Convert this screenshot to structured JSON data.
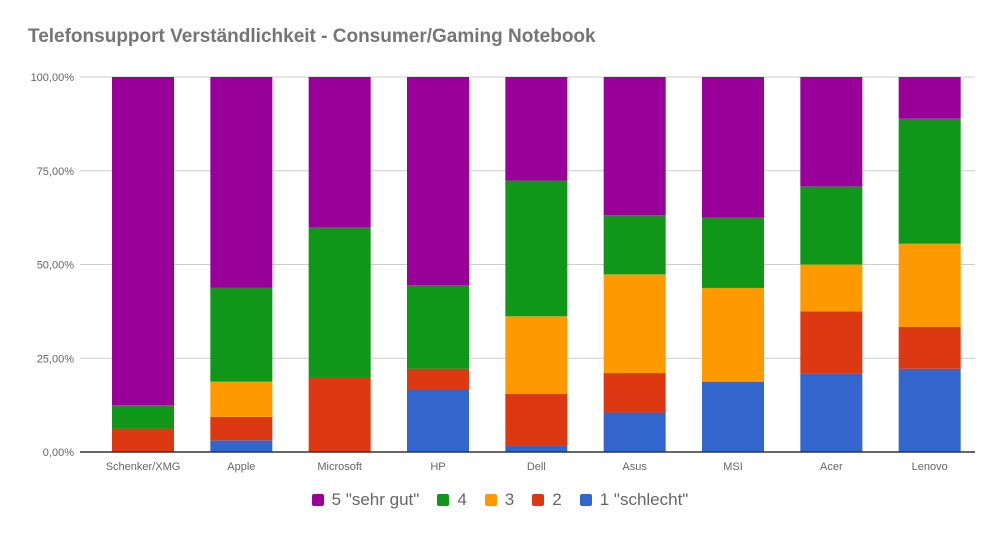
{
  "chart_data": {
    "type": "bar",
    "stacked": true,
    "title": "Telefonsupport Verständlichkeit - Consumer/Gaming Notebook",
    "xlabel": "",
    "ylabel": "",
    "ylim": [
      0,
      100
    ],
    "yticks": [
      {
        "value": 0,
        "label": "0,00%"
      },
      {
        "value": 25,
        "label": "25,00%"
      },
      {
        "value": 50,
        "label": "50,00%"
      },
      {
        "value": 75,
        "label": "75,00%"
      },
      {
        "value": 100,
        "label": "100,00%"
      }
    ],
    "grid": true,
    "legend_position": "bottom",
    "categories": [
      "Schenker/XMG",
      "Apple",
      "Microsoft",
      "HP",
      "Dell",
      "Asus",
      "MSI",
      "Acer",
      "Lenovo"
    ],
    "series": [
      {
        "name": "1 \"schlecht\"",
        "color": "#3366cc",
        "values": [
          0,
          3.13,
          0,
          16.67,
          1.72,
          10.53,
          18.75,
          20.83,
          22.22
        ]
      },
      {
        "name": "2",
        "color": "#dc3912",
        "values": [
          6.25,
          6.25,
          20,
          5.56,
          13.79,
          10.53,
          0,
          16.67,
          11.11
        ]
      },
      {
        "name": "3",
        "color": "#ff9900",
        "values": [
          0,
          9.38,
          0,
          0,
          20.69,
          26.32,
          25,
          12.5,
          22.22
        ]
      },
      {
        "name": "4",
        "color": "#109618",
        "values": [
          6.25,
          25,
          40,
          22.22,
          36.21,
          15.79,
          18.75,
          20.83,
          33.33
        ]
      },
      {
        "name": "5 \"sehr gut\"",
        "color": "#990099",
        "values": [
          87.5,
          56.25,
          40,
          55.56,
          27.59,
          36.84,
          37.5,
          29.17,
          11.11
        ]
      }
    ],
    "legend_order": [
      4,
      3,
      2,
      1,
      0
    ]
  }
}
